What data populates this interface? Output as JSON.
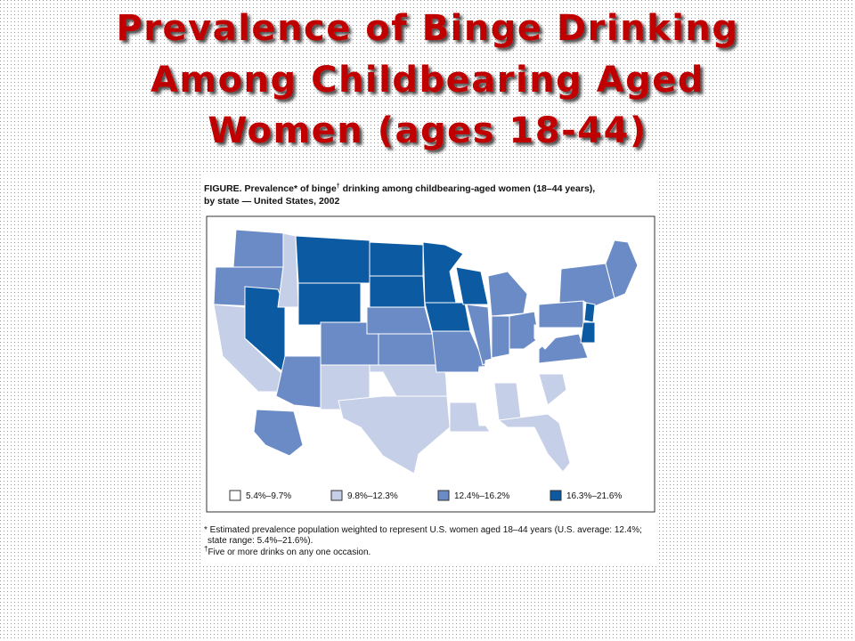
{
  "title": {
    "lines": [
      "Prevalence of Binge Drinking",
      "Among Childbearing Aged",
      "Women (ages 18-44)"
    ]
  },
  "figure": {
    "caption": {
      "line1": [
        "FIGURE. Prevalence* of binge",
        "†",
        " drinking among childbearing-aged women (18–44 years),"
      ],
      "line2": "by state — United States, 2002"
    },
    "legend": {
      "items": [
        {
          "label": "5.4%–9.7%",
          "color": "#ffffff"
        },
        {
          "label": "9.8%–12.3%",
          "color": "#c5cfe7"
        },
        {
          "label": "12.4%–16.2%",
          "color": "#6b8bc6"
        },
        {
          "label": "16.3%–21.6%",
          "color": "#0b5aa2"
        }
      ]
    },
    "footnotes": {
      "line1": "* Estimated prevalence population weighted to represent U.S. women aged 18–44 years (U.S. average: 12.4%;",
      "line2": "state range: 5.4%–21.6%).",
      "line3": [
        "†",
        "Five or more drinks on any one occasion."
      ]
    }
  }
}
